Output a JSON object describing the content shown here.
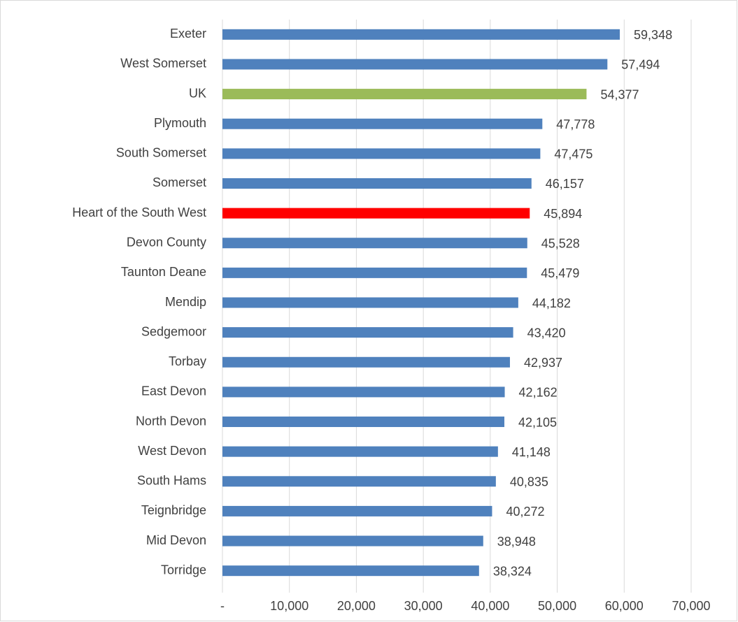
{
  "chart_data": {
    "type": "bar",
    "orientation": "horizontal",
    "categories": [
      "Exeter",
      "West Somerset",
      "UK",
      "Plymouth",
      "South Somerset",
      "Somerset",
      "Heart of the South West",
      "Devon County",
      "Taunton Deane",
      "Mendip",
      "Sedgemoor",
      "Torbay",
      "East Devon",
      "North Devon",
      "West Devon",
      "South Hams",
      "Teignbridge",
      "Mid Devon",
      "Torridge"
    ],
    "values": [
      59348,
      57494,
      54377,
      47778,
      47475,
      46157,
      45894,
      45528,
      45479,
      44182,
      43420,
      42937,
      42162,
      42105,
      41148,
      40835,
      40272,
      38948,
      38324
    ],
    "value_labels": [
      "59,348",
      "57,494",
      "54,377",
      "47,778",
      "47,475",
      "46,157",
      "45,894",
      "45,528",
      "45,479",
      "44,182",
      "43,420",
      "42,937",
      "42,162",
      "42,105",
      "41,148",
      "40,835",
      "40,272",
      "38,948",
      "38,324"
    ],
    "colors": [
      "#4f81bd",
      "#4f81bd",
      "#9bbb59",
      "#4f81bd",
      "#4f81bd",
      "#4f81bd",
      "#ff0000",
      "#4f81bd",
      "#4f81bd",
      "#4f81bd",
      "#4f81bd",
      "#4f81bd",
      "#4f81bd",
      "#4f81bd",
      "#4f81bd",
      "#4f81bd",
      "#4f81bd",
      "#4f81bd",
      "#4f81bd"
    ],
    "xlim": [
      0,
      70000
    ],
    "xticks": [
      {
        "value": 0,
        "label": "-"
      },
      {
        "value": 10000,
        "label": "10,000"
      },
      {
        "value": 20000,
        "label": "20,000"
      },
      {
        "value": 30000,
        "label": "30,000"
      },
      {
        "value": 40000,
        "label": "40,000"
      },
      {
        "value": 50000,
        "label": "50,000"
      },
      {
        "value": 60000,
        "label": "60,000"
      },
      {
        "value": 70000,
        "label": "70,000"
      }
    ],
    "grid": true
  }
}
